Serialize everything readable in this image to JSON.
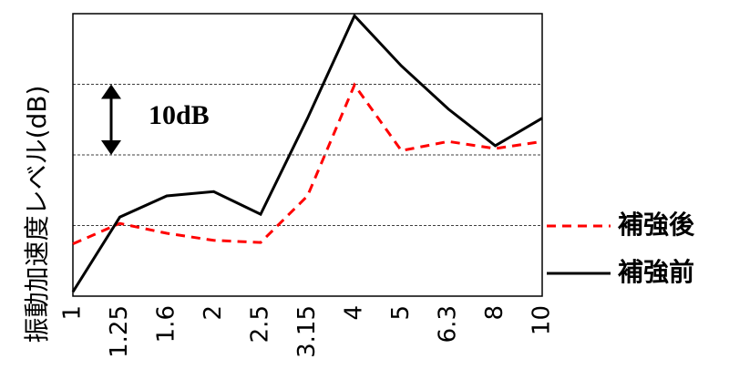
{
  "chart_data": {
    "type": "line",
    "y_label": "振動加速度レベル(dB)",
    "annotation": "10dB",
    "categories": [
      "1",
      "1.25",
      "1.6",
      "2",
      "2.5",
      "3.15",
      "4",
      "5",
      "6.3",
      "8",
      "10"
    ],
    "series": [
      {
        "name": "補強後",
        "color": "#ff0000",
        "dashed": true,
        "values": [
          7.4,
          10.3,
          8.9,
          7.9,
          7.6,
          14.2,
          29.9,
          20.6,
          21.9,
          20.9,
          21.9
        ]
      },
      {
        "name": "補強前",
        "color": "#000000",
        "dashed": false,
        "values": [
          0.6,
          11.2,
          14.2,
          14.8,
          11.6,
          25.2,
          39.7,
          32.6,
          26.5,
          21.3,
          25.2
        ]
      }
    ],
    "ylim": [
      0,
      40
    ],
    "yticks": [
      10,
      20,
      30
    ],
    "grid": true
  }
}
